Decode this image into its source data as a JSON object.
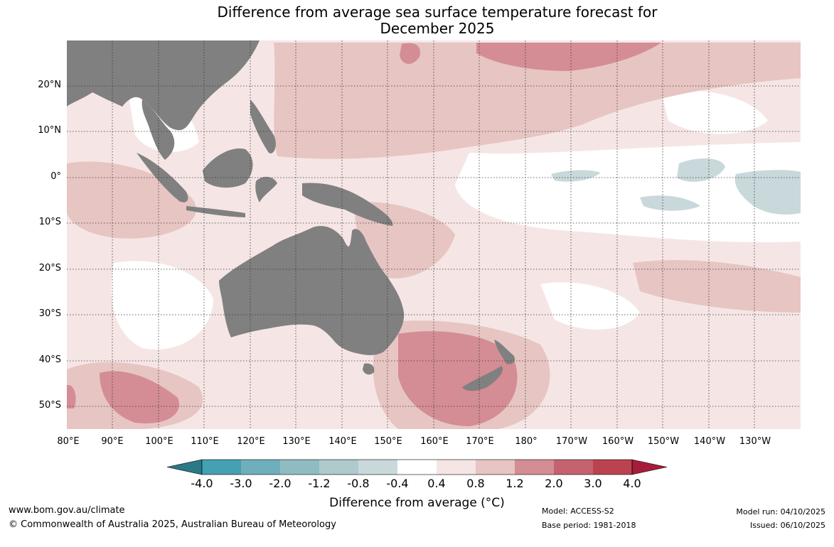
{
  "title": {
    "line1": "Difference from average sea surface temperature forecast for",
    "line2": "December 2025"
  },
  "map": {
    "latitude_labels": [
      "20°N",
      "10°N",
      "0°",
      "10°S",
      "20°S",
      "30°S",
      "40°S",
      "50°S"
    ],
    "longitude_labels": [
      "80°E",
      "90°E",
      "100°E",
      "110°E",
      "120°E",
      "130°E",
      "140°E",
      "150°E",
      "160°E",
      "170°E",
      "180°",
      "170°W",
      "160°W",
      "150°W",
      "140°W",
      "130°W"
    ],
    "land_color": "#808080",
    "ocean_color": "#ffffff"
  },
  "colorbar": {
    "labels": [
      "-4.0",
      "-3.0",
      "-2.0",
      "-1.2",
      "-0.8",
      "-0.4",
      "0.4",
      "0.8",
      "1.2",
      "2.0",
      "3.0",
      "4.0"
    ],
    "colors": [
      "#2a7a86",
      "#45a1b1",
      "#6fafbb",
      "#8fbcc3",
      "#afc9cc",
      "#c9d8db",
      "#ffffff",
      "#f5e6e5",
      "#e7c5c2",
      "#d48d95",
      "#c4636f",
      "#bb4350",
      "#a61c39"
    ],
    "title": "Difference from average (°C)"
  },
  "footer": {
    "website": "www.bom.gov.au/climate",
    "copyright": "© Commonwealth of Australia 2025, Australian Bureau of Meteorology",
    "model": "Model: ACCESS-S2",
    "base_period": "Base period: 1981-2018",
    "model_run": "Model run: 04/10/2025",
    "issued": "Issued: 06/10/2025"
  }
}
